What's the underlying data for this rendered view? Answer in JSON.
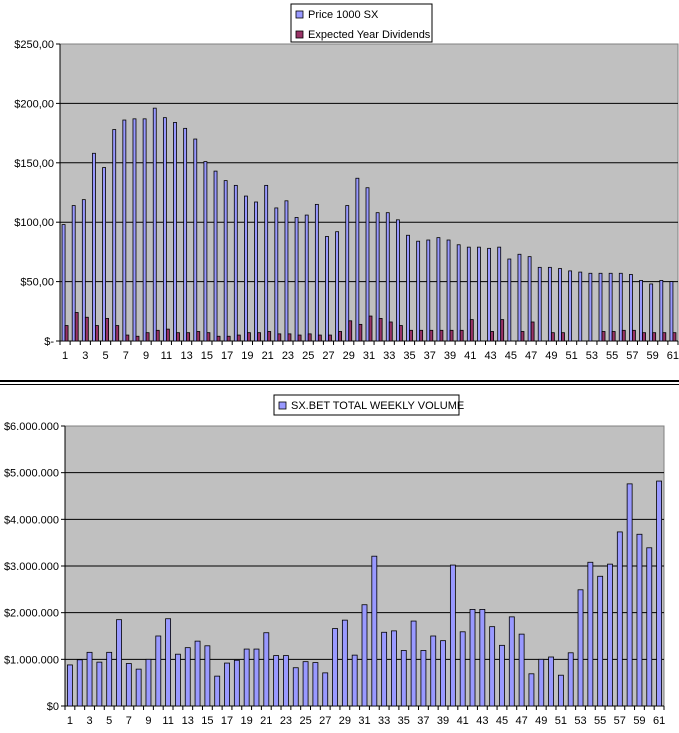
{
  "chart_data": [
    {
      "type": "bar",
      "title": "",
      "xlabel": "",
      "ylabel": "",
      "ylim": [
        0,
        250
      ],
      "y_ticks": [
        "$-",
        "$50,00",
        "$100,00",
        "$150,00",
        "$200,00",
        "$250,00"
      ],
      "x_tick_labels": [
        "1",
        "3",
        "5",
        "7",
        "9",
        "11",
        "13",
        "15",
        "17",
        "19",
        "21",
        "23",
        "25",
        "27",
        "29",
        "31",
        "33",
        "35",
        "37",
        "39",
        "41",
        "43",
        "45",
        "47",
        "49",
        "51",
        "53",
        "55",
        "57",
        "59",
        "61"
      ],
      "grid": true,
      "legend_position": "top-center",
      "categories": [
        1,
        2,
        3,
        4,
        5,
        6,
        7,
        8,
        9,
        10,
        11,
        12,
        13,
        14,
        15,
        16,
        17,
        18,
        19,
        20,
        21,
        22,
        23,
        24,
        25,
        26,
        27,
        28,
        29,
        30,
        31,
        32,
        33,
        34,
        35,
        36,
        37,
        38,
        39,
        40,
        41,
        42,
        43,
        44,
        45,
        46,
        47,
        48,
        49,
        50,
        51,
        52,
        53,
        54,
        55,
        56,
        57,
        58,
        59,
        60,
        61
      ],
      "series": [
        {
          "name": "Price 1000 SX",
          "color": "#9999ff",
          "values": [
            98,
            114,
            119,
            158,
            146,
            178,
            186,
            187,
            187,
            196,
            188,
            184,
            179,
            170,
            151,
            143,
            135,
            131,
            122,
            117,
            131,
            112,
            118,
            104,
            106,
            115,
            88,
            92,
            114,
            137,
            129,
            108,
            108,
            102,
            89,
            84,
            85,
            87,
            85,
            81,
            79,
            79,
            78,
            79,
            69,
            73,
            71,
            62,
            62,
            61,
            59,
            58,
            57,
            57,
            57,
            57,
            56,
            51,
            48,
            51,
            50
          ]
        },
        {
          "name": "Expected Year Dividends",
          "color": "#993366",
          "values": [
            13,
            24,
            20,
            13,
            19,
            13,
            5,
            4,
            7,
            9,
            10,
            7,
            7,
            8,
            7,
            4,
            4,
            5,
            7,
            7,
            8,
            6,
            6,
            5,
            6,
            5,
            5,
            8,
            17,
            14,
            21,
            19,
            16,
            13,
            9,
            9,
            9,
            9,
            9,
            9,
            18,
            0,
            8,
            18,
            0,
            8,
            16,
            0,
            7,
            7,
            0,
            0,
            0,
            8,
            8,
            9,
            9,
            7,
            7,
            7,
            7
          ]
        }
      ]
    },
    {
      "type": "bar",
      "title": "",
      "xlabel": "",
      "ylabel": "",
      "ylim": [
        0,
        6000000
      ],
      "y_ticks": [
        "$0",
        "$1.000.000",
        "$2.000.000",
        "$3.000.000",
        "$4.000.000",
        "$5.000.000",
        "$6.000.000"
      ],
      "x_tick_labels": [
        "1",
        "3",
        "5",
        "7",
        "9",
        "11",
        "13",
        "15",
        "17",
        "19",
        "21",
        "23",
        "25",
        "27",
        "29",
        "31",
        "33",
        "35",
        "37",
        "39",
        "41",
        "43",
        "45",
        "47",
        "49",
        "51",
        "53",
        "55",
        "57",
        "59",
        "61"
      ],
      "grid": true,
      "legend_position": "top-center",
      "categories": [
        1,
        2,
        3,
        4,
        5,
        6,
        7,
        8,
        9,
        10,
        11,
        12,
        13,
        14,
        15,
        16,
        17,
        18,
        19,
        20,
        21,
        22,
        23,
        24,
        25,
        26,
        27,
        28,
        29,
        30,
        31,
        32,
        33,
        34,
        35,
        36,
        37,
        38,
        39,
        40,
        41,
        42,
        43,
        44,
        45,
        46,
        47,
        48,
        49,
        50,
        51,
        52,
        53,
        54,
        55,
        56,
        57,
        58,
        59,
        60,
        61
      ],
      "series": [
        {
          "name": "SX.BET TOTAL WEEKLY VOLUME",
          "color": "#9999ff",
          "values": [
            880000,
            990000,
            1150000,
            940000,
            1150000,
            1850000,
            910000,
            790000,
            1000000,
            1500000,
            1870000,
            1110000,
            1250000,
            1390000,
            1290000,
            640000,
            920000,
            980000,
            1220000,
            1220000,
            1570000,
            1080000,
            1080000,
            820000,
            950000,
            930000,
            710000,
            1660000,
            1840000,
            1090000,
            2170000,
            3210000,
            1580000,
            1610000,
            1190000,
            1820000,
            1190000,
            1500000,
            1400000,
            3020000,
            1590000,
            2070000,
            2070000,
            1700000,
            1300000,
            1910000,
            1540000,
            690000,
            1000000,
            1050000,
            660000,
            1140000,
            2490000,
            3080000,
            2780000,
            3040000,
            3730000,
            4760000,
            3680000,
            3390000,
            4820000
          ]
        }
      ]
    }
  ]
}
